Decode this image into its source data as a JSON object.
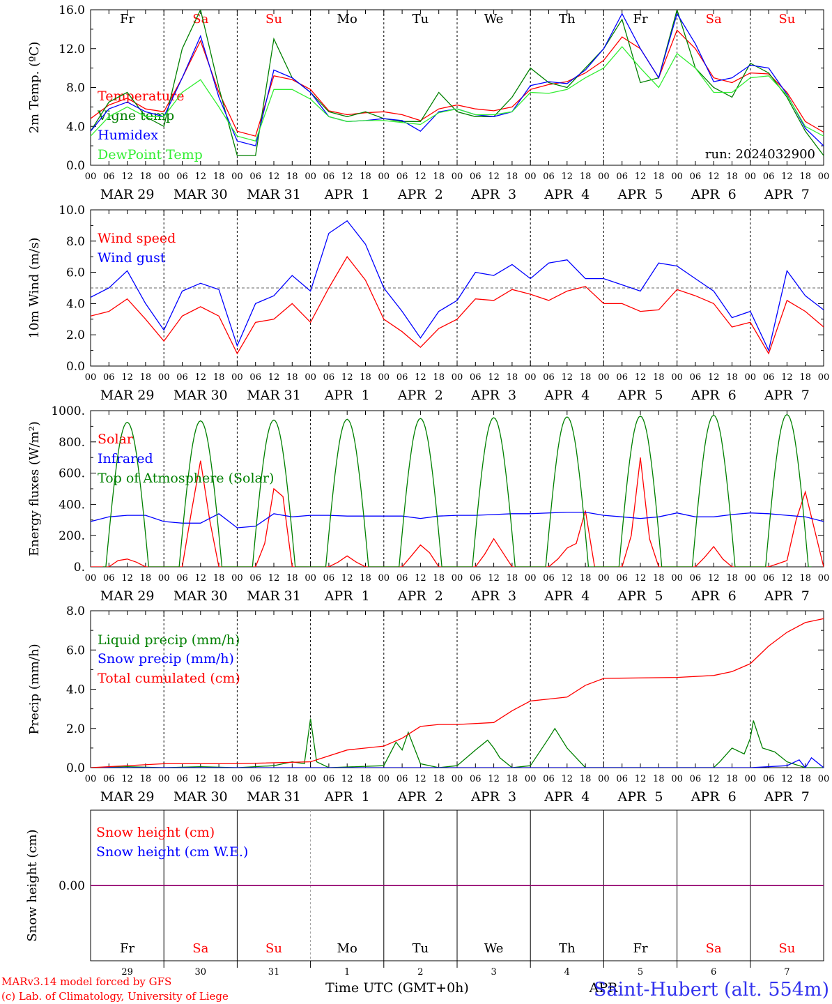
{
  "colors": {
    "red": "#ff0000",
    "green": "#008000",
    "lightgreen": "#33ee33",
    "blue": "#0000ff",
    "purple": "#800080",
    "black": "#000000"
  },
  "days": {
    "names": [
      "Fr",
      "Sa",
      "Su",
      "Mo",
      "Tu",
      "We",
      "Th",
      "Fr",
      "Sa",
      "Su"
    ],
    "weekend_idx": [
      1,
      2,
      8,
      9
    ],
    "month_labels": [
      "MAR 29",
      "MAR 30",
      "MAR 31",
      "APR  1",
      "APR  2",
      "APR  3",
      "APR  4",
      "APR  5",
      "APR  6",
      "APR  7"
    ],
    "date_numbers": [
      "29",
      "30",
      "31",
      "1",
      "2",
      "3",
      "4",
      "5",
      "6",
      "7"
    ]
  },
  "hour_ticks": [
    "00",
    "06",
    "12",
    "18"
  ],
  "last_tick": "00",
  "run_label": "run: 2024032900",
  "footer": {
    "model": "MARv3.14 model forced by GFS",
    "lab": "(c) Lab. of Climatology, University of Liege",
    "xlabel": "Time UTC (GMT+0h)",
    "month": "APR",
    "station": "Saint-Hubert (alt. 554m)"
  },
  "chart_data": [
    {
      "type": "line",
      "ylabel": "2m Temp. (ºC)",
      "ylim": [
        0,
        16
      ],
      "yticks": [
        "0.0",
        "4.0",
        "8.0",
        "12.0",
        "16.0"
      ],
      "x_unit": "hours since MAR 29 00 UTC",
      "series": [
        {
          "name": "Temperature",
          "color": "red",
          "x": [
            0,
            6,
            12,
            18,
            24,
            30,
            36,
            42,
            48,
            54,
            60,
            66,
            72,
            78,
            84,
            90,
            96,
            102,
            108,
            114,
            120,
            126,
            132,
            138,
            144,
            150,
            156,
            162,
            168,
            174,
            180,
            186,
            192,
            198,
            204,
            210,
            216,
            222,
            228,
            234,
            240
          ],
          "y": [
            4.8,
            6.2,
            6.9,
            5.8,
            5.5,
            9.0,
            12.8,
            7.5,
            3.5,
            3.0,
            9.2,
            8.8,
            7.8,
            5.6,
            5.2,
            5.4,
            5.5,
            5.2,
            4.6,
            5.8,
            6.2,
            5.8,
            5.6,
            6.0,
            7.8,
            8.3,
            8.6,
            9.5,
            10.8,
            13.2,
            12.0,
            9.0,
            13.9,
            12.0,
            9.0,
            8.5,
            9.5,
            9.4,
            7.5,
            4.5,
            3.4
          ]
        },
        {
          "name": "Vigne temp",
          "color": "green",
          "x": [
            0,
            6,
            12,
            18,
            24,
            30,
            36,
            42,
            48,
            54,
            60,
            66,
            72,
            78,
            84,
            90,
            96,
            102,
            108,
            114,
            120,
            126,
            132,
            138,
            144,
            150,
            156,
            162,
            168,
            174,
            180,
            186,
            192,
            198,
            204,
            210,
            216,
            222,
            228,
            234,
            240
          ],
          "y": [
            3.5,
            6.5,
            7.5,
            5.0,
            4.0,
            12.0,
            16.0,
            8.0,
            1.0,
            1.0,
            13.0,
            9.0,
            7.5,
            5.5,
            5.0,
            5.5,
            4.8,
            4.5,
            4.5,
            7.5,
            5.5,
            5.0,
            5.0,
            7.0,
            10.0,
            8.5,
            8.0,
            10.0,
            12.0,
            15.0,
            8.5,
            9.0,
            16.0,
            10.0,
            8.0,
            7.0,
            10.5,
            9.5,
            7.0,
            3.5,
            1.0
          ]
        },
        {
          "name": "Humidex",
          "color": "blue",
          "x": [
            0,
            6,
            12,
            18,
            24,
            30,
            36,
            42,
            48,
            54,
            60,
            66,
            72,
            78,
            84,
            90,
            96,
            102,
            108,
            114,
            120,
            126,
            132,
            138,
            144,
            150,
            156,
            162,
            168,
            174,
            180,
            186,
            192,
            198,
            204,
            210,
            216,
            222,
            228,
            234,
            240
          ],
          "y": [
            3.5,
            5.8,
            6.5,
            5.5,
            5.0,
            9.0,
            13.3,
            7.0,
            2.5,
            2.0,
            9.8,
            9.0,
            7.5,
            5.0,
            4.5,
            4.6,
            4.8,
            4.6,
            3.5,
            5.5,
            5.8,
            5.2,
            5.0,
            5.5,
            8.2,
            8.6,
            8.4,
            9.8,
            12.0,
            15.6,
            12.0,
            9.0,
            15.6,
            12.5,
            8.6,
            9.0,
            10.3,
            10.0,
            7.3,
            3.8,
            2.0
          ]
        },
        {
          "name": "DewPoint Temp",
          "color": "lightgreen",
          "x": [
            0,
            6,
            12,
            18,
            24,
            30,
            36,
            42,
            48,
            54,
            60,
            66,
            72,
            78,
            84,
            90,
            96,
            102,
            108,
            114,
            120,
            126,
            132,
            138,
            144,
            150,
            156,
            162,
            168,
            174,
            180,
            186,
            192,
            198,
            204,
            210,
            216,
            222,
            228,
            234,
            240
          ],
          "y": [
            3.0,
            5.0,
            6.0,
            5.0,
            5.0,
            7.5,
            8.8,
            6.0,
            3.0,
            2.5,
            7.8,
            7.8,
            6.8,
            5.0,
            4.5,
            4.6,
            4.6,
            4.4,
            4.2,
            5.4,
            5.8,
            5.2,
            5.2,
            5.5,
            7.5,
            7.4,
            7.8,
            9.0,
            10.0,
            12.2,
            10.0,
            8.0,
            11.5,
            10.0,
            7.5,
            7.5,
            9.0,
            9.2,
            7.2,
            4.0,
            3.0
          ]
        }
      ]
    },
    {
      "type": "line",
      "ylabel": "10m Wind (m/s)",
      "ylim": [
        0,
        10
      ],
      "yticks": [
        "0.0",
        "2.0",
        "4.0",
        "6.0",
        "8.0",
        "10.0"
      ],
      "reference_line": 5,
      "series": [
        {
          "name": "Wind speed",
          "color": "red",
          "x": [
            0,
            6,
            12,
            18,
            24,
            30,
            36,
            42,
            48,
            54,
            60,
            66,
            72,
            78,
            84,
            90,
            96,
            102,
            108,
            114,
            120,
            126,
            132,
            138,
            144,
            150,
            156,
            162,
            168,
            174,
            180,
            186,
            192,
            198,
            204,
            210,
            216,
            222,
            228,
            234,
            240
          ],
          "y": [
            3.2,
            3.5,
            4.3,
            3.0,
            1.6,
            3.2,
            3.8,
            3.2,
            0.8,
            2.8,
            3.0,
            4.0,
            2.8,
            5.0,
            7.0,
            5.5,
            3.0,
            2.2,
            1.2,
            2.4,
            3.0,
            4.3,
            4.2,
            4.9,
            4.6,
            4.2,
            4.8,
            5.1,
            4.0,
            4.0,
            3.5,
            3.6,
            4.9,
            4.5,
            4.0,
            2.5,
            2.8,
            0.8,
            4.2,
            3.5,
            2.5
          ]
        },
        {
          "name": "Wind gust",
          "color": "blue",
          "x": [
            0,
            6,
            12,
            18,
            24,
            30,
            36,
            42,
            48,
            54,
            60,
            66,
            72,
            78,
            84,
            90,
            96,
            102,
            108,
            114,
            120,
            126,
            132,
            138,
            144,
            150,
            156,
            162,
            168,
            174,
            180,
            186,
            192,
            198,
            204,
            210,
            216,
            222,
            228,
            234,
            240
          ],
          "y": [
            4.4,
            5.0,
            6.1,
            4.0,
            2.3,
            4.8,
            5.3,
            4.9,
            1.3,
            4.0,
            4.5,
            5.8,
            4.8,
            8.5,
            9.3,
            7.8,
            5.0,
            3.5,
            1.8,
            3.5,
            4.2,
            6.0,
            5.8,
            6.5,
            5.6,
            6.6,
            6.8,
            5.6,
            5.6,
            5.2,
            4.8,
            6.6,
            6.4,
            5.6,
            4.8,
            3.1,
            3.5,
            1.0,
            6.1,
            4.5,
            3.6
          ]
        }
      ]
    },
    {
      "type": "line",
      "ylabel": "Energy fluxes (W/m²)",
      "ylim": [
        0,
        1000
      ],
      "yticks": [
        "0.",
        "200.",
        "400.",
        "600.",
        "800.",
        "1000."
      ],
      "series": [
        {
          "name": "Solar",
          "color": "red",
          "x": [
            0,
            6,
            9,
            12,
            15,
            18,
            24,
            30,
            33,
            36,
            39,
            42,
            48,
            54,
            57,
            60,
            63,
            66,
            72,
            78,
            81,
            84,
            87,
            90,
            96,
            102,
            105,
            108,
            111,
            114,
            120,
            126,
            129,
            132,
            135,
            138,
            144,
            150,
            153,
            156,
            159,
            162,
            165,
            168,
            174,
            177,
            180,
            183,
            186,
            192,
            198,
            201,
            204,
            207,
            210,
            216,
            222,
            225,
            228,
            231,
            234,
            240
          ],
          "y": [
            0,
            0,
            40,
            50,
            30,
            0,
            0,
            0,
            350,
            680,
            300,
            0,
            0,
            0,
            150,
            500,
            450,
            0,
            0,
            0,
            30,
            70,
            30,
            0,
            0,
            0,
            70,
            140,
            90,
            0,
            0,
            0,
            80,
            180,
            90,
            0,
            0,
            0,
            50,
            120,
            150,
            360,
            0,
            0,
            0,
            200,
            700,
            180,
            0,
            0,
            0,
            60,
            130,
            50,
            0,
            0,
            0,
            20,
            40,
            300,
            480,
            0
          ]
        },
        {
          "name": "Infrared",
          "color": "blue",
          "x": [
            0,
            6,
            12,
            18,
            24,
            30,
            36,
            42,
            48,
            54,
            60,
            66,
            72,
            78,
            84,
            90,
            96,
            102,
            108,
            114,
            120,
            126,
            132,
            138,
            144,
            150,
            156,
            162,
            168,
            174,
            180,
            186,
            192,
            198,
            204,
            210,
            216,
            222,
            228,
            234,
            240
          ],
          "y": [
            290,
            320,
            330,
            330,
            290,
            280,
            280,
            340,
            250,
            260,
            340,
            320,
            330,
            330,
            325,
            325,
            325,
            325,
            310,
            325,
            330,
            330,
            335,
            340,
            340,
            345,
            350,
            350,
            330,
            320,
            310,
            320,
            345,
            320,
            320,
            335,
            345,
            340,
            330,
            320,
            290
          ]
        },
        {
          "name": "Top of Atmosphere (Solar)",
          "color": "green",
          "peaks": [
            925,
            935,
            940,
            945,
            950,
            955,
            960,
            965,
            970,
            975
          ],
          "sunrise_h": 5,
          "sunset_h": 19
        }
      ]
    },
    {
      "type": "line",
      "ylabel": "Precip (mm/h)",
      "ylim": [
        0,
        8
      ],
      "yticks": [
        "0.0",
        "2.0",
        "4.0",
        "6.0",
        "8.0"
      ],
      "series": [
        {
          "name": "Liquid precip (mm/h)",
          "color": "green",
          "x": [
            0,
            12,
            24,
            36,
            48,
            60,
            66,
            70,
            72,
            74,
            78,
            96,
            100,
            102,
            104,
            108,
            114,
            120,
            126,
            130,
            132,
            134,
            138,
            144,
            150,
            152,
            156,
            162,
            168,
            174,
            180,
            186,
            192,
            198,
            204,
            206,
            210,
            214,
            216,
            217,
            220,
            224,
            228,
            234,
            240
          ],
          "y": [
            0,
            0.05,
            0,
            0.05,
            0,
            0.1,
            0.3,
            0.2,
            2.5,
            0.3,
            0,
            0.1,
            1.3,
            0.9,
            1.8,
            0.2,
            0,
            0.1,
            0.9,
            1.4,
            1.0,
            0.5,
            0,
            0.1,
            1.5,
            2.0,
            1.0,
            0,
            0,
            0,
            0,
            0,
            0,
            0,
            0,
            0.3,
            1.0,
            0.7,
            1.5,
            2.4,
            1.0,
            0.8,
            0.3,
            0,
            0
          ]
        },
        {
          "name": "Snow precip (mm/h)",
          "color": "blue",
          "x": [
            0,
            120,
            216,
            228,
            232,
            234,
            236,
            240
          ],
          "y": [
            0,
            0,
            0,
            0.1,
            0.4,
            0,
            0.5,
            0
          ]
        },
        {
          "name": "Total cumulated (cm)",
          "color": "red",
          "x": [
            0,
            24,
            48,
            72,
            84,
            96,
            102,
            108,
            114,
            120,
            132,
            138,
            144,
            150,
            156,
            162,
            168,
            192,
            204,
            210,
            216,
            222,
            228,
            234,
            240
          ],
          "y": [
            0,
            0.2,
            0.2,
            0.3,
            0.9,
            1.1,
            1.5,
            2.1,
            2.2,
            2.2,
            2.3,
            2.9,
            3.4,
            3.5,
            3.6,
            4.2,
            4.55,
            4.6,
            4.7,
            4.9,
            5.3,
            6.2,
            6.9,
            7.4,
            7.6
          ]
        }
      ]
    },
    {
      "type": "line",
      "ylabel": "Snow height (cm)",
      "ylim": [
        -1,
        1
      ],
      "yticks": [
        "0.00"
      ],
      "series": [
        {
          "name": "Snow height (cm)",
          "color": "red",
          "x": [
            0,
            240
          ],
          "y": [
            0,
            0
          ]
        },
        {
          "name": "Snow height (cm W.E.)",
          "color": "blue",
          "x": [
            0,
            240
          ],
          "y": [
            0,
            0
          ]
        }
      ]
    }
  ]
}
